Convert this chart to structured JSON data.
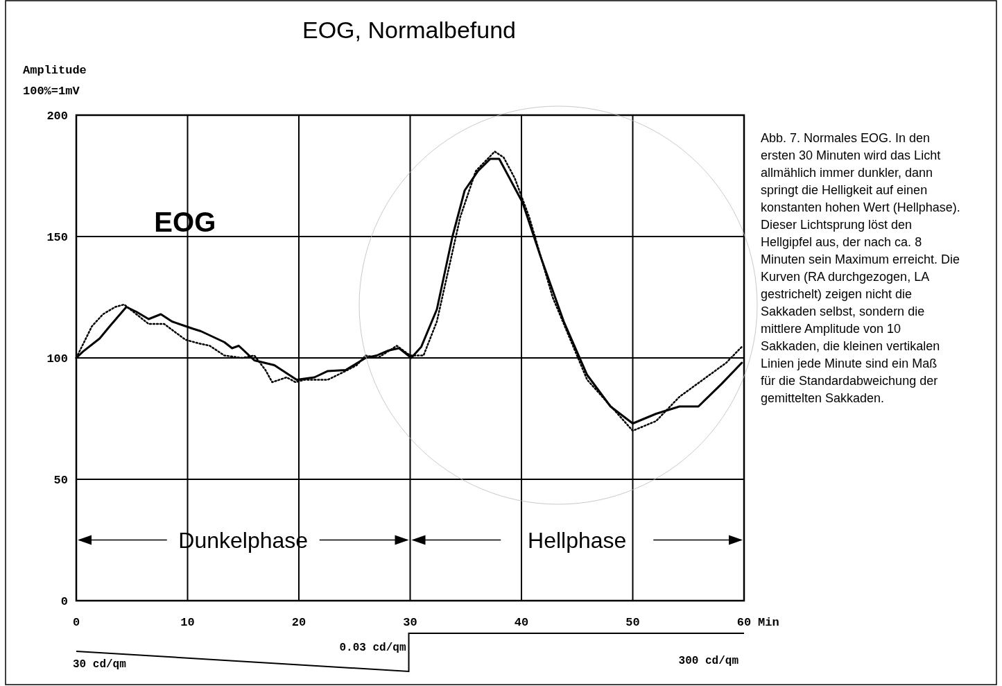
{
  "chart_data": {
    "type": "line",
    "title": "EOG, Normalbefund",
    "xlabel": "Min",
    "ylabel": "Amplitude",
    "xlim": [
      0,
      60
    ],
    "xticks": [
      0,
      10,
      20,
      30,
      40,
      50,
      60
    ],
    "ylim": [
      0,
      200
    ],
    "yticks": [
      0,
      50,
      100,
      150,
      200
    ],
    "grid": true,
    "series": [
      {
        "color": "#000000",
        "line_style": "solid",
        "x": [
          0,
          0.6,
          2.1,
          3,
          4.5,
          5.4,
          6.5,
          7.6,
          8.6,
          10.5,
          11.2,
          13.3,
          14,
          14.6,
          16,
          17.8,
          19.8,
          21.4,
          22.6,
          24.2,
          26,
          27,
          28,
          29,
          30.1,
          31,
          32.4,
          33.8,
          34.9,
          36.1,
          37.2,
          38,
          40.1,
          41.7,
          43.8,
          45.9,
          48,
          50,
          52.1,
          54.2,
          55.9,
          58,
          59.8
        ],
        "values": [
          100,
          102.6,
          108,
          113,
          121,
          119,
          116,
          118,
          115,
          112,
          111,
          106.5,
          104,
          105,
          99,
          97,
          91,
          92,
          94.6,
          95,
          100,
          101,
          103,
          104,
          100,
          104.6,
          120,
          150,
          169,
          177,
          182,
          182,
          164,
          142,
          115,
          93,
          80,
          73,
          77,
          80,
          80,
          89.4,
          98
        ]
      },
      {
        "color": "#000000",
        "line_style": "dotted",
        "x": [
          0,
          1.4,
          2.4,
          3.5,
          4.3,
          6.5,
          7.9,
          9.8,
          11,
          12,
          13.3,
          14.9,
          16,
          17,
          17.6,
          18.9,
          19.7,
          20.5,
          22.6,
          24.2,
          25.2,
          26,
          27.1,
          28.8,
          30,
          31.2,
          32.4,
          34.5,
          35.9,
          37.6,
          38.4,
          39.4,
          40.7,
          42.8,
          45.9,
          50,
          52.1,
          54.2,
          56.3,
          58.4,
          59.8
        ],
        "values": [
          100,
          113,
          118,
          121,
          122,
          114,
          114,
          107.5,
          106,
          105,
          101,
          100,
          101,
          95,
          90,
          92,
          90,
          91,
          91,
          94.6,
          97,
          101,
          100,
          105,
          101,
          101,
          115,
          158,
          177,
          185,
          182.6,
          174,
          158,
          125,
          91,
          70,
          74,
          84,
          91,
          98,
          104.6
        ]
      }
    ],
    "annotations": [
      "100%=1mV",
      "EOG",
      "30 cd/qm",
      "0.03 cd/qm",
      "300 cd/qm",
      "Dunkelphase",
      "Hellphase",
      "Abb. 7. Normales EOG. In den ersten 30 Minuten wird das Licht allmählich immer dunkler, dann springt die Helligkeit auf einen konstanten hohen Wert (Hellphase). Dieser Lichtsprung löst den Hellgipfel aus, der nach ca. 8 Minuten sein Maximum erreicht. Die Kurven (RA durchgezogen, LA gestrichelt) zeigen nicht die Sakkaden selbst, sondern die mittlere Amplitude von 10 Sakkaden, die kleinen vertikalen Linien jede Minute sind ein Maß für die Standardabweichung der gemittelten Sakkaden."
    ]
  }
}
